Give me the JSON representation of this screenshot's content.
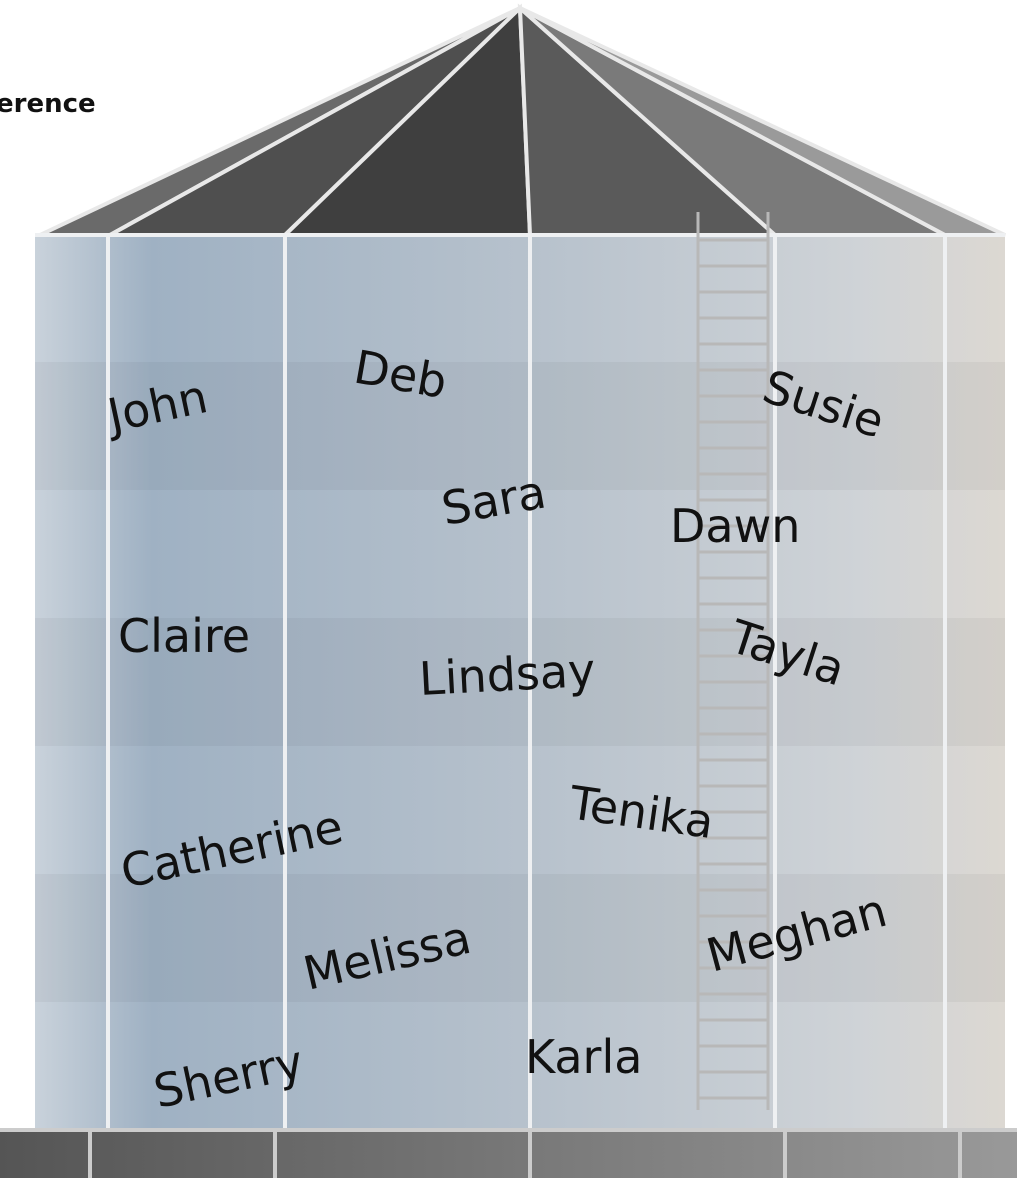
{
  "header": {
    "title": "erence"
  },
  "names": [
    "John",
    "Deb",
    "Susie",
    "Sara",
    "Dawn",
    "Claire",
    "Lindsay",
    "Tayla",
    "Catherine",
    "Tenika",
    "Melissa",
    "Meghan",
    "Sherry",
    "Karla"
  ]
}
